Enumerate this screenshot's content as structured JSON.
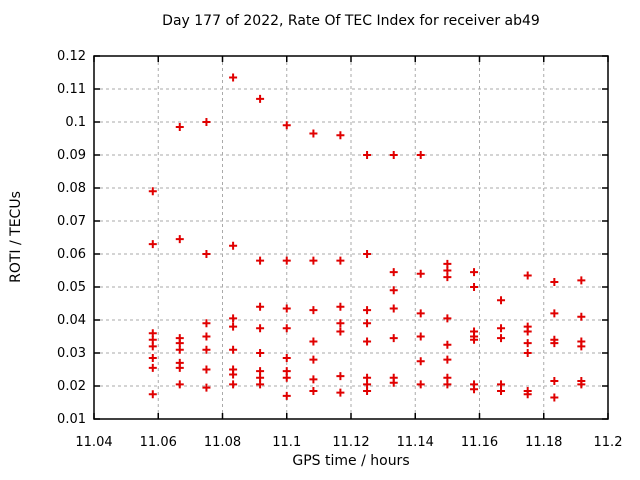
{
  "chart_data": {
    "type": "scatter",
    "title": "Day 177 of 2022, Rate Of TEC Index for receiver ab49",
    "xlabel": "GPS time / hours",
    "ylabel": "ROTI / TECUs",
    "xlim": [
      11.04,
      11.2
    ],
    "ylim": [
      0.01,
      0.12
    ],
    "xticks": [
      11.04,
      11.06,
      11.08,
      11.1,
      11.12,
      11.14,
      11.16,
      11.18,
      11.2
    ],
    "xtick_labels": [
      "11.04",
      "11.06",
      "11.08",
      "11.1",
      "11.12",
      "11.14",
      "11.16",
      "11.18",
      "11.2"
    ],
    "yticks": [
      0.01,
      0.02,
      0.03,
      0.04,
      0.05,
      0.06,
      0.07,
      0.08,
      0.09,
      0.1,
      0.11,
      0.12
    ],
    "ytick_labels": [
      "0.01",
      "0.02",
      "0.03",
      "0.04",
      "0.05",
      "0.06",
      "0.07",
      "0.08",
      "0.09",
      "0.1",
      "0.11",
      "0.12"
    ],
    "grid": true,
    "legend": "none",
    "marker": "plus",
    "marker_color": "#e00000",
    "grid_color": "#aaaaaa",
    "axis_color": "#000000",
    "series": [
      {
        "name": "ROTI",
        "points": [
          [
            11.0583,
            0.079
          ],
          [
            11.0583,
            0.063
          ],
          [
            11.0583,
            0.036
          ],
          [
            11.0583,
            0.034
          ],
          [
            11.0583,
            0.032
          ],
          [
            11.0583,
            0.0285
          ],
          [
            11.0583,
            0.0255
          ],
          [
            11.0583,
            0.0175
          ],
          [
            11.0667,
            0.0985
          ],
          [
            11.0667,
            0.0645
          ],
          [
            11.0667,
            0.0345
          ],
          [
            11.0667,
            0.033
          ],
          [
            11.0667,
            0.031
          ],
          [
            11.0667,
            0.027
          ],
          [
            11.0667,
            0.0255
          ],
          [
            11.0667,
            0.0205
          ],
          [
            11.075,
            0.1
          ],
          [
            11.075,
            0.06
          ],
          [
            11.075,
            0.039
          ],
          [
            11.075,
            0.035
          ],
          [
            11.075,
            0.031
          ],
          [
            11.075,
            0.025
          ],
          [
            11.075,
            0.0195
          ],
          [
            11.0833,
            0.1135
          ],
          [
            11.0833,
            0.0625
          ],
          [
            11.0833,
            0.0405
          ],
          [
            11.0833,
            0.038
          ],
          [
            11.0833,
            0.031
          ],
          [
            11.0833,
            0.025
          ],
          [
            11.0833,
            0.0235
          ],
          [
            11.0833,
            0.0205
          ],
          [
            11.0917,
            0.107
          ],
          [
            11.0917,
            0.058
          ],
          [
            11.0917,
            0.044
          ],
          [
            11.0917,
            0.0375
          ],
          [
            11.0917,
            0.03
          ],
          [
            11.0917,
            0.0245
          ],
          [
            11.0917,
            0.0225
          ],
          [
            11.0917,
            0.0205
          ],
          [
            11.1,
            0.099
          ],
          [
            11.1,
            0.058
          ],
          [
            11.1,
            0.0435
          ],
          [
            11.1,
            0.0375
          ],
          [
            11.1,
            0.0285
          ],
          [
            11.1,
            0.0245
          ],
          [
            11.1,
            0.0225
          ],
          [
            11.1,
            0.017
          ],
          [
            11.1083,
            0.0965
          ],
          [
            11.1083,
            0.058
          ],
          [
            11.1083,
            0.043
          ],
          [
            11.1083,
            0.0335
          ],
          [
            11.1083,
            0.028
          ],
          [
            11.1083,
            0.022
          ],
          [
            11.1083,
            0.0185
          ],
          [
            11.1167,
            0.096
          ],
          [
            11.1167,
            0.058
          ],
          [
            11.1167,
            0.044
          ],
          [
            11.1167,
            0.039
          ],
          [
            11.1167,
            0.0365
          ],
          [
            11.1167,
            0.023
          ],
          [
            11.1167,
            0.018
          ],
          [
            11.125,
            0.09
          ],
          [
            11.125,
            0.06
          ],
          [
            11.125,
            0.043
          ],
          [
            11.125,
            0.039
          ],
          [
            11.125,
            0.0335
          ],
          [
            11.125,
            0.0225
          ],
          [
            11.125,
            0.0205
          ],
          [
            11.125,
            0.0185
          ],
          [
            11.1333,
            0.09
          ],
          [
            11.1333,
            0.0545
          ],
          [
            11.1333,
            0.049
          ],
          [
            11.1333,
            0.0435
          ],
          [
            11.1333,
            0.0345
          ],
          [
            11.1333,
            0.0225
          ],
          [
            11.1333,
            0.021
          ],
          [
            11.1417,
            0.09
          ],
          [
            11.1417,
            0.054
          ],
          [
            11.1417,
            0.042
          ],
          [
            11.1417,
            0.035
          ],
          [
            11.1417,
            0.0275
          ],
          [
            11.1417,
            0.0205
          ],
          [
            11.15,
            0.057
          ],
          [
            11.15,
            0.055
          ],
          [
            11.15,
            0.053
          ],
          [
            11.15,
            0.0405
          ],
          [
            11.15,
            0.0325
          ],
          [
            11.15,
            0.028
          ],
          [
            11.15,
            0.0225
          ],
          [
            11.15,
            0.0205
          ],
          [
            11.1583,
            0.0545
          ],
          [
            11.1583,
            0.05
          ],
          [
            11.1583,
            0.0365
          ],
          [
            11.1583,
            0.035
          ],
          [
            11.1583,
            0.034
          ],
          [
            11.1583,
            0.0205
          ],
          [
            11.1583,
            0.019
          ],
          [
            11.1667,
            0.046
          ],
          [
            11.1667,
            0.0375
          ],
          [
            11.1667,
            0.0345
          ],
          [
            11.1667,
            0.0205
          ],
          [
            11.1667,
            0.0185
          ],
          [
            11.175,
            0.0535
          ],
          [
            11.175,
            0.038
          ],
          [
            11.175,
            0.0365
          ],
          [
            11.175,
            0.033
          ],
          [
            11.175,
            0.03
          ],
          [
            11.175,
            0.0185
          ],
          [
            11.175,
            0.0175
          ],
          [
            11.1833,
            0.0515
          ],
          [
            11.1833,
            0.042
          ],
          [
            11.1833,
            0.034
          ],
          [
            11.1833,
            0.033
          ],
          [
            11.1833,
            0.0215
          ],
          [
            11.1833,
            0.0165
          ],
          [
            11.1917,
            0.052
          ],
          [
            11.1917,
            0.041
          ],
          [
            11.1917,
            0.0335
          ],
          [
            11.1917,
            0.032
          ],
          [
            11.1917,
            0.0215
          ],
          [
            11.1917,
            0.0205
          ]
        ]
      }
    ]
  }
}
